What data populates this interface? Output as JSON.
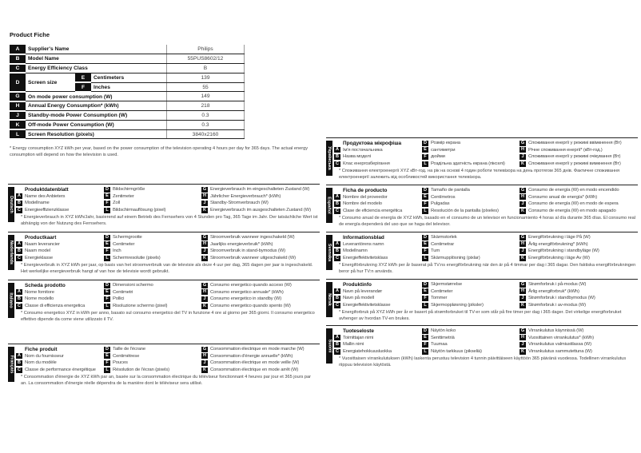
{
  "title": "Product Fiche",
  "fiche": [
    {
      "letter": "A",
      "name": "Supplier's Name",
      "value": "Philips"
    },
    {
      "letter": "B",
      "name": "Model Name",
      "value": "55PUS8602/12"
    },
    {
      "letter": "C",
      "name": "Energy Efficiency Class",
      "value": "B"
    },
    {
      "letter": "D",
      "name": "Screen size",
      "sub": [
        {
          "letter": "E",
          "name": "Centimeters",
          "value": "139"
        },
        {
          "letter": "F",
          "name": "Inches",
          "value": "55"
        }
      ]
    },
    {
      "letter": "G",
      "name": "On mode power consumption (W)",
      "value": "149"
    },
    {
      "letter": "H",
      "name": "Annual Energy Consumption* (kWh)",
      "value": "218"
    },
    {
      "letter": "J",
      "name": "Standby-mode Power Consumption (W)",
      "value": "0.3"
    },
    {
      "letter": "K",
      "name": "Off-mode Power Consumption (W)",
      "value": "0.3"
    },
    {
      "letter": "L",
      "name": "Screen Resolution (pixels)",
      "value": "3840x2160"
    }
  ],
  "note": "* Energy consumption XYZ kWh per year, based on the power consumption of the television operating 4 hours per day for 365 days. The actual energy consumption will depend on how the television is used.",
  "languages": [
    {
      "lang": "Deutsch",
      "title": "Produktdatenblatt",
      "A": "Name des Anbieters",
      "B": "Modellname",
      "C": "Energieeffizienzklasse",
      "D": "Bildschirmgröße",
      "E": "Zentimeter",
      "F": "Zoll",
      "L": "Bildschirmauflösung (pixel)",
      "G": "Energieverbrauch im eingeschalteten Zustand (W)",
      "H": "Jährlicher Energieverbrauch* (kWh)",
      "J": "Standby-Stromverbrauch (W)",
      "K": "Energieverbrauch im ausgeschalteten Zustand (W)",
      "note": "* Energieverbrauch in XYZ kWh/Jahr, basierend auf einem Betrieb des Fernsehers von 4 Stunden pro Tag, 365 Tage im Jahr. Der tatsächliche Wert ist abhängig von der Nutzung des Fernsehers."
    },
    {
      "lang": "Nederlands",
      "title": "Productkaart",
      "A": "Naam leverancier",
      "B": "Naam model",
      "C": "Energieklasse",
      "D": "Schermgrootte",
      "E": "Centimeter",
      "F": "Inch",
      "L": "Schermresolutie (pixels)",
      "G": "Stroomverbruik wanneer ingeschakeld (W)",
      "H": "Jaarlijks energieverbruik* (kWh)",
      "J": "Stroomverbruik in stand-bymodus (W)",
      "K": "Stroomverbruik wanneer uitgeschakeld (W)",
      "note": "* Energieverbruik in XYZ kWh per jaar, op basis van het stroomverbruik van de televisie als deze 4 uur per dag, 365 dagen per jaar is ingeschakeld. Het werkelijke energieverbruik hangt af van hoe de televisie wordt gebruikt."
    },
    {
      "lang": "Italiano",
      "title": "Scheda prodotto",
      "A": "Nome fornitore",
      "B": "Nome modello",
      "C": "Classe di efficienza energetica",
      "D": "Dimensioni schermo",
      "E": "Centimetri",
      "F": "Pollici",
      "L": "Risoluzione schermo (pixel)",
      "G": "Consumo energetico quando acceso (W)",
      "H": "Consumo energetico annuale* (kWh)",
      "J": "Consumo energetico in standby (W)",
      "K": "Consumo energetico quando spento (W)",
      "note": "* Consumo energetico XYZ in kWh per anno, basato sul consumo energetico del TV in funzione 4 ore al giorno per 365 giorni. Il consumo energetico effettivo dipende da come viene utilizzato il TV."
    },
    {
      "lang": "Français",
      "title": "Fiche produit",
      "A": "Nom du fournisseur",
      "B": "Nom du modèle",
      "C": "Classe de performance énergétique",
      "D": "Taille de l'écrane",
      "E": "Centimètrese",
      "F": "Pouces",
      "L": "Résolution de l'écran (pixels)",
      "G": "Consommation électrique en mode marche (W)",
      "H": "Consommation d'énergie annuelle* (kWh)",
      "J": "Consommation électrique en mode veille (W)",
      "K": "Consommation électrique en mode arrêt (W)",
      "note": "* Consommation d'énergie de XYZ kWh par an, basée sur la consommation électrique du téléviseur fonctionnant 4 heures par jour et 365 jours par an. La consommation d'énergie réelle dépendra de la manière dont le téléviseur sera utilisé."
    },
    {
      "lang": "Українська",
      "title": "Продуктова мікрофіша",
      "A": "Ім'я постачальника",
      "B": "Назва моделі",
      "C": "Клас енергозберігання",
      "D": "Розмір екрана",
      "E": "сантиметри",
      "F": "дюйми",
      "L": "Роздільна здатність екрана (пікселі)",
      "G": "Споживання енергії у режимі ввімкнення (Вт)",
      "H": "Річне споживання енергії* (кВт-год.)",
      "J": "Споживання енергії у режимі очікування (Вт)",
      "K": "Споживання енергії у режимі вимкнення (Вт)",
      "note": "* Споживання електроенергії XYZ кВт-год. на рік на основі 4 годин роботи телевізора на день протягом 365 днів. Фактичне споживання електроенергії залежить від особливостей використання телевізора."
    },
    {
      "lang": "Español",
      "title": "Ficha de producto",
      "A": "Nombre del proveedor",
      "B": "Nombre del modelo",
      "C": "Clase de eficiencia energética",
      "D": "Tamaño de pantalla",
      "E": "Centímetros",
      "F": "Pulgadas",
      "L": "Resolución de la pantalla (píxeles)",
      "G": "Consumo de energía (W) en modo encendido",
      "H": "Consumo anual de energía* (kWh)",
      "J": "Consumo de energía (W) en modo de espera",
      "K": "Consumo de energía (W) en modo apagado",
      "note": "* Consumo anual de energía de XYZ kWh, basado en el consumo de un televisor en funcionamiento 4 horas al día durante 365 días. El consumo real de energía dependerá del uso que se haga del televisor."
    },
    {
      "lang": "Svenska",
      "title": "Informationsblad",
      "A": "Leverantörens namn",
      "B": "Modellnamn",
      "C": "Energieffektivitetsklass",
      "D": "Skärmstorlek",
      "E": "Centimetrar",
      "F": "Tum",
      "L": "Skärmupplösning (pixlar)",
      "G": "Energiförbrukning i läge På (W)",
      "H": "Årlig energiförbrukning* (kWh)",
      "J": "Energiförbrukning i standbyläge (W)",
      "K": "Energiförbrukning i läge Av (W)",
      "note": "* Energiförbrukning XYZ kWh per år baserat på TV:ns energiförbrukning när den är på 4 timmar per dag i 365 dagar. Den faktiska energiförbrukningen beror på hur TV:n används."
    },
    {
      "lang": "Norsk",
      "title": "Produktinfo",
      "A": "Navn på leverandør",
      "B": "Navn på modell",
      "C": "Energieffektivitetsklasse",
      "D": "Skjermstørrelse",
      "E": "Centimeter",
      "F": "Tommer",
      "L": "Skjermoppløsning (piksler)",
      "G": "Strømforbruk i på-modus (W)",
      "H": "Årlig energiforbruk* (kWh)",
      "J": "Strømforbruk i standbymodus (W)",
      "K": "Strømforbruk i av-modus (W)",
      "note": "* Energiforbruk på XYZ kWh per år er basert på strømforbruket til TV-er som står på fire timer per dag i 365 dager. Det virkelige energiforbruket avhenger av hvordan TV-en brukes."
    },
    {
      "lang": "Suomi",
      "title": "Tuoteseloste",
      "A": "Toimittajan nimi",
      "B": "Mallin nimi",
      "C": "Energiatehokkuusluokka",
      "D": "Näytön koko",
      "E": "Senttimetriä",
      "F": "Tuumaa",
      "L": "Näytön tarkkuus (pikseliä)",
      "G": "Virrankulutus käynnissä (W)",
      "H": "Vuosittainen virrankulutus* (kWh)",
      "J": "Virrankulutus valmiustilassa (W)",
      "K": "Virrankulutus sammutettuna (W)",
      "note": "* Vuosittaisen virrankulutuksen (kWh) laskenta perustuu television 4 tunnin päivittäiseen käyttöön 365 päivänä vuodessa. Todellinen virrankulutus riippuu television käytöstä."
    }
  ]
}
